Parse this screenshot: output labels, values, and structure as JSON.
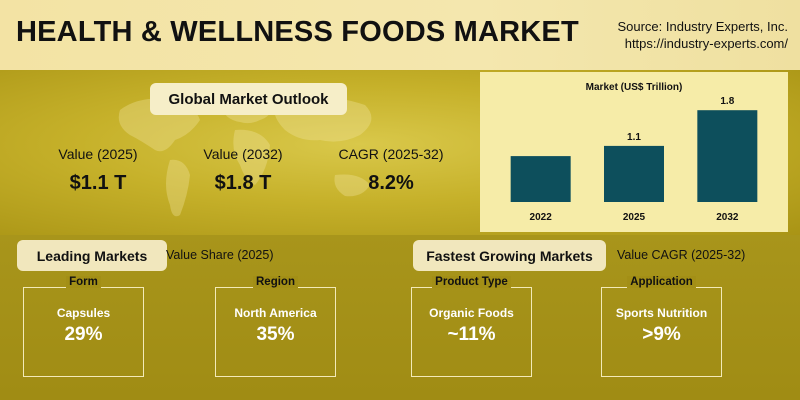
{
  "header": {
    "title": "HEALTH & WELLNESS FOODS MARKET",
    "source_line1": "Source: Industry Experts, Inc.",
    "source_line2": "https://industry-experts.com/"
  },
  "outlook": {
    "heading": "Global Market Outlook",
    "kpis": [
      {
        "label": "Value (2025)",
        "value": "$1.1 T"
      },
      {
        "label": "Value (2032)",
        "value": "$1.8 T"
      },
      {
        "label": "CAGR (2025-32)",
        "value": "8.2%"
      }
    ]
  },
  "chart_data": {
    "type": "bar",
    "title": "Market  (US$ Trillion)",
    "categories": [
      "2022",
      "2025",
      "2032"
    ],
    "values": [
      0.9,
      1.1,
      1.8
    ],
    "data_labels": [
      "",
      "1.1",
      "1.8"
    ],
    "ylim": [
      0,
      2.0
    ],
    "bar_color": "#0d4f5c",
    "grid": false
  },
  "leading": {
    "heading": "Leading Markets",
    "subtitle": "Value Share (2025)",
    "cards": [
      {
        "category": "Form",
        "label": "Capsules",
        "value": "29%"
      },
      {
        "category": "Region",
        "label": "North America",
        "value": "35%"
      }
    ]
  },
  "fastest": {
    "heading": "Fastest Growing Markets",
    "subtitle": "Value CAGR (2025-32)",
    "cards": [
      {
        "category": "Product Type",
        "label": "Organic Foods",
        "value": "~11%"
      },
      {
        "category": "Application",
        "label": "Sports Nutrition",
        "value": ">9%"
      }
    ]
  },
  "colors": {
    "header_bg": "#f3e3a4",
    "gold": "#c6b12a",
    "dark_gold": "#a08c14",
    "chart_bg": "#f6eca8"
  }
}
